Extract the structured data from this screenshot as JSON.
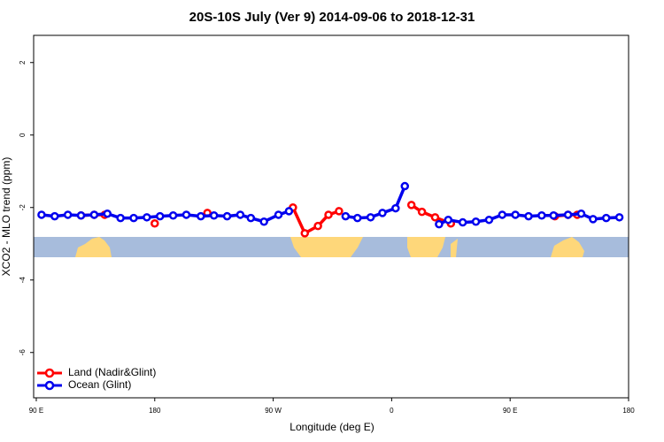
{
  "chart_data": {
    "type": "line",
    "title": "20S-10S July (Ver 9)   2014-09-06 to 2018-12-31",
    "x_label": "Longitude (deg E)",
    "y_label": "XCO2 - MLO trend (ppm)",
    "xlim": [
      88,
      540
    ],
    "ylim": [
      -7.25,
      2.75
    ],
    "xticks": [
      {
        "value": 90,
        "label": "90 E"
      },
      180,
      {
        "value": 270,
        "label": "90 W"
      },
      {
        "value": 360,
        "label": "0"
      },
      {
        "value": 450,
        "label": "90 E"
      },
      {
        "value": 540,
        "label": "180"
      }
    ],
    "yticks": [
      -6,
      -4,
      -2,
      0,
      2
    ],
    "legend": "bottom-left",
    "series": [
      {
        "name": "Land (Nadir&Glint)",
        "color": "#ff0000",
        "x": [
          124,
          134,
          142,
          null,
          180,
          null,
          220,
          null,
          285,
          294,
          304,
          312,
          320,
          null,
          375,
          383,
          393,
          405,
          null,
          484,
          494,
          501
        ],
        "values": [
          -2.22,
          -2.2,
          -2.2,
          null,
          -2.44,
          null,
          -2.15,
          null,
          -2.0,
          -2.71,
          -2.51,
          -2.2,
          -2.1,
          null,
          -1.93,
          -2.12,
          -2.27,
          -2.44,
          null,
          -2.24,
          -2.2,
          -2.2
        ]
      },
      {
        "name": "Ocean (Glint)",
        "color": "#0000ee",
        "x": [
          94,
          104,
          114,
          124,
          134,
          144,
          154,
          164,
          174,
          184,
          194,
          204,
          215,
          225,
          235,
          245,
          253,
          263,
          274,
          282,
          null,
          325,
          334,
          344,
          353,
          363,
          370,
          null,
          396,
          403,
          414,
          424,
          434,
          444,
          454,
          464,
          474,
          483,
          494,
          504,
          513,
          523,
          533
        ],
        "values": [
          -2.2,
          -2.24,
          -2.2,
          -2.22,
          -2.2,
          -2.17,
          -2.29,
          -2.29,
          -2.27,
          -2.24,
          -2.22,
          -2.2,
          -2.24,
          -2.22,
          -2.24,
          -2.2,
          -2.29,
          -2.39,
          -2.2,
          -2.1,
          null,
          -2.24,
          -2.29,
          -2.27,
          -2.15,
          -2.02,
          -1.41,
          null,
          -2.46,
          -2.34,
          -2.41,
          -2.39,
          -2.34,
          -2.2,
          -2.2,
          -2.24,
          -2.22,
          -2.22,
          -2.2,
          -2.17,
          -2.32,
          -2.29,
          -2.27
        ]
      }
    ]
  }
}
